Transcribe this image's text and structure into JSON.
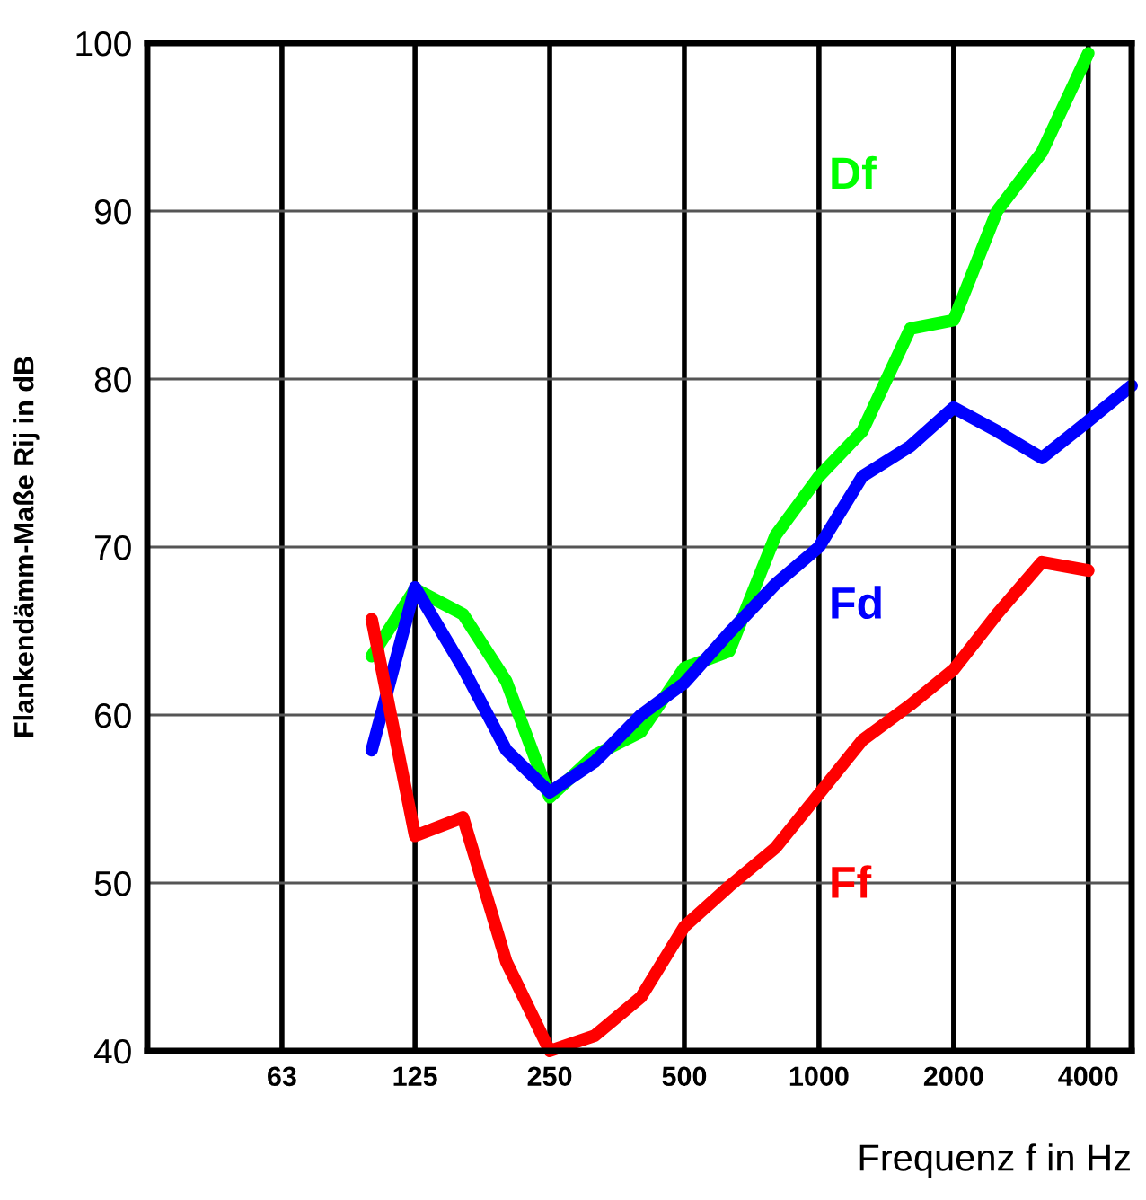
{
  "chart_data": {
    "type": "line",
    "xlabel": "Frequenz f in Hz",
    "ylabel": "Flankendämm-Maße Rij in dB",
    "log": "x",
    "xlim": [
      31.5,
      5000
    ],
    "xticks": [
      63,
      125,
      250,
      500,
      1000,
      2000,
      4000
    ],
    "ylim": [
      40,
      100
    ],
    "yticks": [
      40,
      50,
      60,
      70,
      80,
      90,
      100
    ],
    "grid": true,
    "series": [
      {
        "name": "Df",
        "color": "#00ff00",
        "x": [
          100,
          125,
          160,
          200,
          250,
          315,
          400,
          500,
          630,
          800,
          1000,
          1250,
          1600,
          2000,
          2500,
          3150,
          4000
        ],
        "values": [
          63.5,
          67.5,
          66,
          62,
          55.1,
          57.6,
          59,
          62.8,
          63.8,
          70.7,
          74.2,
          76.9,
          83,
          83.5,
          90,
          93.5,
          99.4
        ]
      },
      {
        "name": "Fd",
        "color": "#0000ff",
        "x": [
          100,
          125,
          160,
          200,
          250,
          315,
          400,
          500,
          630,
          800,
          1000,
          1250,
          1600,
          2000,
          2500,
          3150,
          4000,
          5000
        ],
        "values": [
          57.9,
          67.6,
          62.8,
          57.9,
          55.4,
          57.2,
          60,
          61.9,
          64.9,
          67.8,
          70,
          74.2,
          76,
          78.3,
          76.9,
          75.3,
          77.5,
          79.6
        ]
      },
      {
        "name": "Ff",
        "color": "#ff0000",
        "x": [
          100,
          125,
          160,
          200,
          250,
          315,
          400,
          500,
          630,
          800,
          1000,
          1250,
          1600,
          2000,
          2500,
          3150,
          4000
        ],
        "values": [
          65.7,
          52.8,
          53.9,
          45.3,
          40,
          40.9,
          43.2,
          47.4,
          49.8,
          52.1,
          55.3,
          58.5,
          60.6,
          62.7,
          66,
          69.1,
          68.6
        ]
      }
    ]
  }
}
